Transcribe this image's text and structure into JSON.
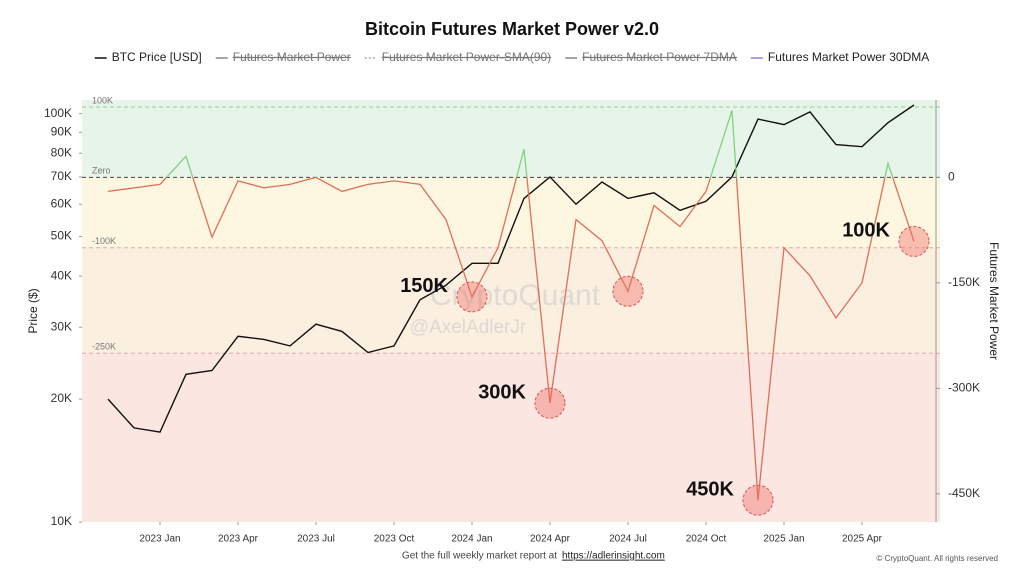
{
  "chart_data": {
    "type": "line",
    "title": "Bitcoin Futures Market Power v2.0",
    "y_label": "Price ($)",
    "y2_label": "Futures Market Power",
    "ylog": true,
    "x": [
      "2022-11",
      "2022-12",
      "2023-01",
      "2023-02",
      "2023-03",
      "2023-04",
      "2023-05",
      "2023-06",
      "2023-07",
      "2023-08",
      "2023-09",
      "2023-10",
      "2023-11",
      "2023-12",
      "2024-01",
      "2024-02",
      "2024-03",
      "2024-04",
      "2024-05",
      "2024-06",
      "2024-07",
      "2024-08",
      "2024-09",
      "2024-10",
      "2024-11",
      "2024-12",
      "2025-01",
      "2025-02",
      "2025-03",
      "2025-04",
      "2025-05",
      "2025-06"
    ],
    "xlim": [
      "2022-10",
      "2025-07"
    ],
    "xticks": [
      {
        "value": "2023-01",
        "label": "2023 Jan"
      },
      {
        "value": "2023-04",
        "label": "2023 Apr"
      },
      {
        "value": "2023-07",
        "label": "2023 Jul"
      },
      {
        "value": "2023-10",
        "label": "2023 Oct"
      },
      {
        "value": "2024-01",
        "label": "2024 Jan"
      },
      {
        "value": "2024-04",
        "label": "2024 Apr"
      },
      {
        "value": "2024-07",
        "label": "2024 Jul"
      },
      {
        "value": "2024-10",
        "label": "2024 Oct"
      },
      {
        "value": "2025-01",
        "label": "2025 Jan"
      },
      {
        "value": "2025-04",
        "label": "2025 Apr"
      }
    ],
    "ylim": [
      10000,
      108000
    ],
    "yticks": [
      {
        "value": 10000,
        "label": "10K"
      },
      {
        "value": 20000,
        "label": "20K"
      },
      {
        "value": 30000,
        "label": "30K"
      },
      {
        "value": 40000,
        "label": "40K"
      },
      {
        "value": 50000,
        "label": "50K"
      },
      {
        "value": 60000,
        "label": "60K"
      },
      {
        "value": 70000,
        "label": "70K"
      },
      {
        "value": 80000,
        "label": "80K"
      },
      {
        "value": 90000,
        "label": "90K"
      },
      {
        "value": 100000,
        "label": "100K"
      }
    ],
    "y2lim": [
      -490000,
      110000
    ],
    "y2ticks": [
      0,
      {
        "value": -150000,
        "label": "-150K"
      },
      {
        "value": -300000,
        "label": "-300K"
      },
      {
        "value": -450000,
        "label": "-450K"
      }
    ],
    "zones": [
      {
        "label": "100K",
        "value": 100000,
        "line": "#8fcf8f",
        "fill": "#e7f4ea"
      },
      {
        "label": "Zero",
        "value": 0,
        "line": "#444444",
        "fill": "#fdf6e0"
      },
      {
        "label": "-100K",
        "value": -100000,
        "line": "#e7a6a6",
        "fill": "#fbefe0"
      },
      {
        "label": "-250K",
        "value": -250000,
        "line": "#e7a6a6",
        "fill": "#fbe6e2"
      }
    ],
    "series": [
      {
        "name": "BTC Price [USD]",
        "color": "#111111",
        "axis": "y",
        "values": [
          20000,
          17000,
          16600,
          23000,
          23500,
          28500,
          28000,
          27000,
          30500,
          29300,
          26000,
          27000,
          35000,
          38000,
          43000,
          43000,
          62000,
          70000,
          60000,
          68000,
          62000,
          64000,
          58000,
          61000,
          70000,
          97000,
          94000,
          101000,
          84000,
          83000,
          95000,
          105000
        ]
      },
      {
        "name": "Futures Market Power",
        "color": "#888888",
        "hidden": true
      },
      {
        "name": "Futures Market Power-SMA(90)",
        "color": "#aaaaaa",
        "hidden": true
      },
      {
        "name": "Futures Market Power 7DMA",
        "color": "#888888",
        "hidden": true
      },
      {
        "name": "Futures Market Power 30DMA",
        "color": "#8e86d8",
        "axis": "y2",
        "above_color": "#7fd37f",
        "below_color": "#df6e5a",
        "values": [
          -20000,
          -15000,
          -10000,
          30000,
          -85000,
          -5000,
          -15000,
          -10000,
          0,
          -20000,
          -10000,
          -5000,
          -10000,
          -60000,
          -170000,
          -100000,
          40000,
          -321000,
          -60000,
          -90000,
          -162000,
          -40000,
          -70000,
          -20000,
          95000,
          -459000,
          -100000,
          -140000,
          -200000,
          -150000,
          20000,
          -91000
        ]
      }
    ],
    "annotations": [
      {
        "text": "150K",
        "x": "2024-01",
        "y2": -170000
      },
      {
        "text": "300K",
        "x": "2024-04",
        "y2": -321000
      },
      {
        "x": "2024-07",
        "y2": -162000
      },
      {
        "text": "450K",
        "x": "2024-12",
        "y2": -459000
      },
      {
        "text": "100K",
        "x": "2025-06",
        "y2": -91000
      }
    ],
    "watermark": [
      "CryptoQuant",
      "@AxelAdlerJr"
    ],
    "footer": {
      "text": "Get the full weekly market report at",
      "link": "https://adlerinsight.com"
    },
    "copyright": "© CryptoQuant. All rights reserved"
  }
}
